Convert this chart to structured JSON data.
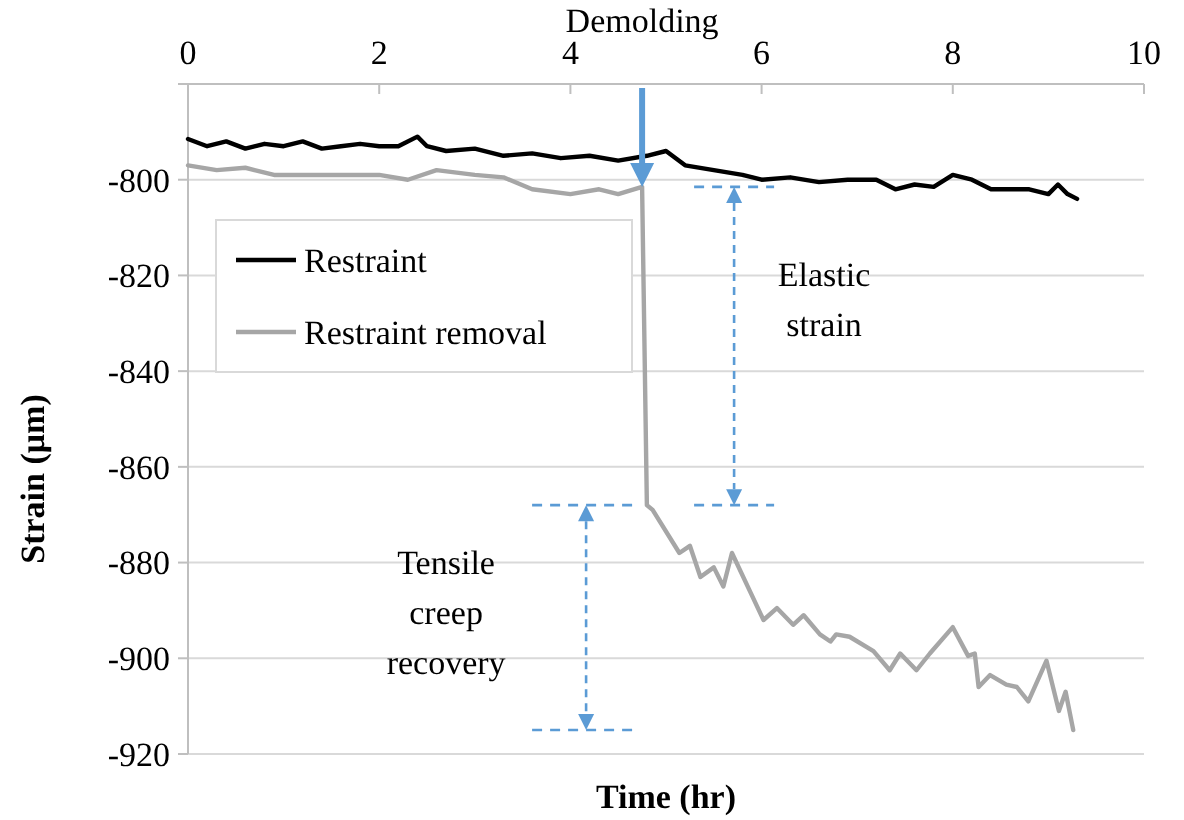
{
  "chart_data": {
    "type": "line",
    "xlabel": "Time (hr)",
    "ylabel": "Strain (μm)",
    "xlim": [
      0,
      10
    ],
    "xticks": [
      0,
      2,
      4,
      6,
      8,
      10
    ],
    "ylim": [
      -920,
      -780
    ],
    "yticks": [
      -920,
      -900,
      -880,
      -860,
      -840,
      -820,
      -800,
      {
        "value": -780,
        "label": null
      }
    ],
    "grid": "y",
    "legend": "top left",
    "line_style": "solid",
    "annotations": [
      "Demolding",
      "Elastic strain",
      "Tensile creep recovery"
    ],
    "series": [
      {
        "name": "Restraint",
        "color": "#000000",
        "x": [
          0,
          0.2,
          0.4,
          0.6,
          0.8,
          1,
          1.2,
          1.4,
          1.6,
          1.8,
          2,
          2.2,
          2.4,
          2.5,
          2.7,
          3,
          3.3,
          3.6,
          3.9,
          4.2,
          4.5,
          4.8,
          5,
          5.2,
          5.5,
          5.8,
          6,
          6.3,
          6.6,
          6.9,
          7.2,
          7.4,
          7.6,
          7.8,
          8,
          8.2,
          8.4,
          8.6,
          8.8,
          9,
          9.1,
          9.2,
          9.3
        ],
        "values": [
          -791.5,
          -793,
          -792,
          -793.5,
          -792.5,
          -793,
          -792,
          -793.5,
          -793,
          -792.5,
          -793,
          -793,
          -791,
          -793,
          -794,
          -793.5,
          -795,
          -794.5,
          -795.5,
          -795,
          -796,
          -795,
          -794,
          -797,
          -798,
          -799,
          -800,
          -799.5,
          -800.5,
          -800,
          -800,
          -802,
          -801,
          -801.5,
          -799,
          -800,
          -802,
          -802,
          -802,
          -803,
          -801,
          -803,
          -804
        ]
      },
      {
        "name": "Restraint removal",
        "color": "#a6a6a6",
        "x": [
          0,
          0.3,
          0.6,
          0.9,
          1.2,
          1.5,
          2,
          2.3,
          2.6,
          3,
          3.3,
          3.6,
          4,
          4.3,
          4.5,
          4.75,
          4.8,
          4.86,
          5.14,
          5.25,
          5.36,
          5.5,
          5.6,
          5.69,
          5.89,
          6.02,
          6.16,
          6.33,
          6.44,
          6.61,
          6.72,
          6.78,
          6.92,
          7.17,
          7.34,
          7.45,
          7.62,
          7.76,
          8,
          8.16,
          8.23,
          8.27,
          8.39,
          8.56,
          8.67,
          8.79,
          8.98,
          9.11,
          9.18,
          9.26
        ],
        "values": [
          -797,
          -798,
          -797.5,
          -799,
          -799,
          -799,
          -799,
          -800,
          -798,
          -799,
          -799.5,
          -802,
          -803,
          -802,
          -803,
          -801.5,
          -868,
          -869,
          -878,
          -876.5,
          -883,
          -881,
          -885,
          -878,
          -886.5,
          -892,
          -889.5,
          -893,
          -891,
          -895,
          -896.5,
          -895,
          -895.5,
          -898.5,
          -902.5,
          -899,
          -902.5,
          -899,
          -893.5,
          -899.5,
          -899,
          -906,
          -903.5,
          -905.5,
          -906,
          -909,
          -900.5,
          -911,
          -907,
          -915
        ]
      }
    ]
  }
}
